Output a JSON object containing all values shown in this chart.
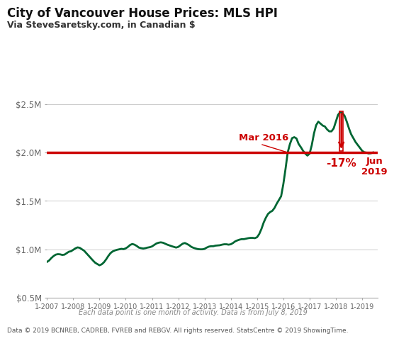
{
  "title": "City of Vancouver House Prices: MLS HPI",
  "subtitle": "Via SteveSaretsky.com, in Canadian $",
  "footer1": "Each data point is one month of activity. Data is from July 8, 2019",
  "footer2": "Data © 2019 BCNREB, CADREB, FVREB and REBGV. All rights reserved. StatsCentre © 2019 ShowingTime.",
  "line_color": "#006633",
  "ref_line_color": "#cc0000",
  "ref_line_value": 2000000,
  "ref_line_label": "Mar 2016",
  "annotation_pct": "-17%",
  "annotation_end": "Jun\n2019",
  "ylim": [
    500000,
    2700000
  ],
  "yticks": [
    500000,
    1000000,
    1500000,
    2000000,
    2500000
  ],
  "ytick_labels": [
    "$0.5M",
    "$1.0M",
    "$1.5M",
    "$2.0M",
    "$2.5M"
  ],
  "xtick_years": [
    "1-2007",
    "1-2008",
    "1-2009",
    "1-2010",
    "1-2011",
    "1-2012",
    "1-2013",
    "1-2014",
    "1-2015",
    "1-2016",
    "1-2017",
    "1-2018",
    "1-2019"
  ],
  "background_color": "#ffffff",
  "data": [
    [
      2007,
      1,
      870000
    ],
    [
      2007,
      2,
      885000
    ],
    [
      2007,
      3,
      910000
    ],
    [
      2007,
      4,
      930000
    ],
    [
      2007,
      5,
      945000
    ],
    [
      2007,
      6,
      950000
    ],
    [
      2007,
      7,
      948000
    ],
    [
      2007,
      8,
      942000
    ],
    [
      2007,
      9,
      945000
    ],
    [
      2007,
      10,
      960000
    ],
    [
      2007,
      11,
      975000
    ],
    [
      2007,
      12,
      980000
    ],
    [
      2008,
      1,
      995000
    ],
    [
      2008,
      2,
      1010000
    ],
    [
      2008,
      3,
      1020000
    ],
    [
      2008,
      4,
      1015000
    ],
    [
      2008,
      5,
      1000000
    ],
    [
      2008,
      6,
      985000
    ],
    [
      2008,
      7,
      960000
    ],
    [
      2008,
      8,
      935000
    ],
    [
      2008,
      9,
      910000
    ],
    [
      2008,
      10,
      885000
    ],
    [
      2008,
      11,
      862000
    ],
    [
      2008,
      12,
      848000
    ],
    [
      2009,
      1,
      835000
    ],
    [
      2009,
      2,
      845000
    ],
    [
      2009,
      3,
      865000
    ],
    [
      2009,
      4,
      895000
    ],
    [
      2009,
      5,
      930000
    ],
    [
      2009,
      6,
      960000
    ],
    [
      2009,
      7,
      978000
    ],
    [
      2009,
      8,
      988000
    ],
    [
      2009,
      9,
      995000
    ],
    [
      2009,
      10,
      1000000
    ],
    [
      2009,
      11,
      1005000
    ],
    [
      2009,
      12,
      1002000
    ],
    [
      2010,
      1,
      1010000
    ],
    [
      2010,
      2,
      1025000
    ],
    [
      2010,
      3,
      1045000
    ],
    [
      2010,
      4,
      1055000
    ],
    [
      2010,
      5,
      1048000
    ],
    [
      2010,
      6,
      1035000
    ],
    [
      2010,
      7,
      1018000
    ],
    [
      2010,
      8,
      1012000
    ],
    [
      2010,
      9,
      1008000
    ],
    [
      2010,
      10,
      1012000
    ],
    [
      2010,
      11,
      1018000
    ],
    [
      2010,
      12,
      1022000
    ],
    [
      2011,
      1,
      1030000
    ],
    [
      2011,
      2,
      1045000
    ],
    [
      2011,
      3,
      1060000
    ],
    [
      2011,
      4,
      1068000
    ],
    [
      2011,
      5,
      1072000
    ],
    [
      2011,
      6,
      1068000
    ],
    [
      2011,
      7,
      1058000
    ],
    [
      2011,
      8,
      1048000
    ],
    [
      2011,
      9,
      1040000
    ],
    [
      2011,
      10,
      1032000
    ],
    [
      2011,
      11,
      1025000
    ],
    [
      2011,
      12,
      1018000
    ],
    [
      2012,
      1,
      1025000
    ],
    [
      2012,
      2,
      1042000
    ],
    [
      2012,
      3,
      1058000
    ],
    [
      2012,
      4,
      1065000
    ],
    [
      2012,
      5,
      1055000
    ],
    [
      2012,
      6,
      1042000
    ],
    [
      2012,
      7,
      1025000
    ],
    [
      2012,
      8,
      1015000
    ],
    [
      2012,
      9,
      1008000
    ],
    [
      2012,
      10,
      1002000
    ],
    [
      2012,
      11,
      1000000
    ],
    [
      2012,
      12,
      1000000
    ],
    [
      2013,
      1,
      1005000
    ],
    [
      2013,
      2,
      1018000
    ],
    [
      2013,
      3,
      1028000
    ],
    [
      2013,
      4,
      1032000
    ],
    [
      2013,
      5,
      1032000
    ],
    [
      2013,
      6,
      1038000
    ],
    [
      2013,
      7,
      1040000
    ],
    [
      2013,
      8,
      1042000
    ],
    [
      2013,
      9,
      1048000
    ],
    [
      2013,
      10,
      1052000
    ],
    [
      2013,
      11,
      1052000
    ],
    [
      2013,
      12,
      1048000
    ],
    [
      2014,
      1,
      1052000
    ],
    [
      2014,
      2,
      1065000
    ],
    [
      2014,
      3,
      1082000
    ],
    [
      2014,
      4,
      1092000
    ],
    [
      2014,
      5,
      1100000
    ],
    [
      2014,
      6,
      1105000
    ],
    [
      2014,
      7,
      1105000
    ],
    [
      2014,
      8,
      1110000
    ],
    [
      2014,
      9,
      1115000
    ],
    [
      2014,
      10,
      1118000
    ],
    [
      2014,
      11,
      1118000
    ],
    [
      2014,
      12,
      1115000
    ],
    [
      2015,
      1,
      1125000
    ],
    [
      2015,
      2,
      1158000
    ],
    [
      2015,
      3,
      1210000
    ],
    [
      2015,
      4,
      1275000
    ],
    [
      2015,
      5,
      1325000
    ],
    [
      2015,
      6,
      1365000
    ],
    [
      2015,
      7,
      1385000
    ],
    [
      2015,
      8,
      1398000
    ],
    [
      2015,
      9,
      1428000
    ],
    [
      2015,
      10,
      1472000
    ],
    [
      2015,
      11,
      1510000
    ],
    [
      2015,
      12,
      1548000
    ],
    [
      2016,
      1,
      1672000
    ],
    [
      2016,
      2,
      1828000
    ],
    [
      2016,
      3,
      2000000
    ],
    [
      2016,
      4,
      2085000
    ],
    [
      2016,
      5,
      2148000
    ],
    [
      2016,
      6,
      2158000
    ],
    [
      2016,
      7,
      2145000
    ],
    [
      2016,
      8,
      2088000
    ],
    [
      2016,
      9,
      2055000
    ],
    [
      2016,
      10,
      2018000
    ],
    [
      2016,
      11,
      1990000
    ],
    [
      2016,
      12,
      1968000
    ],
    [
      2017,
      1,
      1988000
    ],
    [
      2017,
      2,
      2075000
    ],
    [
      2017,
      3,
      2195000
    ],
    [
      2017,
      4,
      2282000
    ],
    [
      2017,
      5,
      2318000
    ],
    [
      2017,
      6,
      2298000
    ],
    [
      2017,
      7,
      2278000
    ],
    [
      2017,
      8,
      2268000
    ],
    [
      2017,
      9,
      2238000
    ],
    [
      2017,
      10,
      2218000
    ],
    [
      2017,
      11,
      2218000
    ],
    [
      2017,
      12,
      2248000
    ],
    [
      2018,
      1,
      2318000
    ],
    [
      2018,
      2,
      2388000
    ],
    [
      2018,
      3,
      2418000
    ],
    [
      2018,
      4,
      2408000
    ],
    [
      2018,
      5,
      2378000
    ],
    [
      2018,
      6,
      2318000
    ],
    [
      2018,
      7,
      2248000
    ],
    [
      2018,
      8,
      2188000
    ],
    [
      2018,
      9,
      2148000
    ],
    [
      2018,
      10,
      2108000
    ],
    [
      2018,
      11,
      2078000
    ],
    [
      2018,
      12,
      2048000
    ],
    [
      2019,
      1,
      2018000
    ],
    [
      2019,
      2,
      2002000
    ],
    [
      2019,
      3,
      1998000
    ],
    [
      2019,
      4,
      1990000
    ],
    [
      2019,
      5,
      1992000
    ],
    [
      2019,
      6,
      2000000
    ]
  ]
}
